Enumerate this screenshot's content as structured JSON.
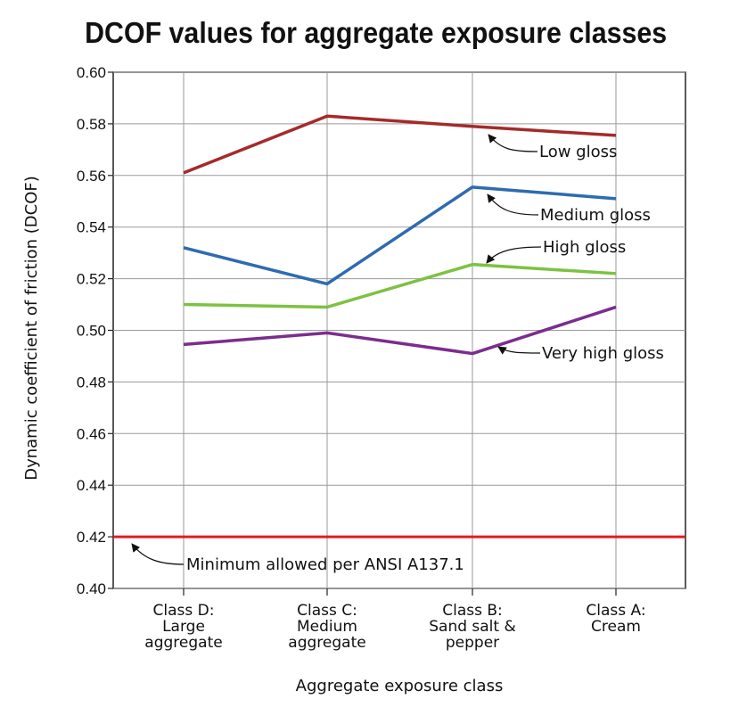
{
  "chart_data": {
    "type": "line",
    "title": "DCOF values for aggregate exposure classes",
    "xlabel": "Aggregate exposure class",
    "ylabel": "Dynamic coefficient of friction (DCOF)",
    "ylim": [
      0.4,
      0.6
    ],
    "yticks": [
      "0.40",
      "0.42",
      "0.44",
      "0.46",
      "0.48",
      "0.50",
      "0.52",
      "0.54",
      "0.56",
      "0.58",
      "0.60"
    ],
    "categories": [
      [
        "Class D:",
        "Large",
        "aggregate"
      ],
      [
        "Class C:",
        "Medium",
        "aggregate"
      ],
      [
        "Class B:",
        "Sand salt &",
        "pepper"
      ],
      [
        "Class A:",
        "Cream"
      ]
    ],
    "series": [
      {
        "name": "Low gloss",
        "color": "#a52a2a",
        "values": [
          0.561,
          0.583,
          0.579,
          0.5755
        ]
      },
      {
        "name": "Medium gloss",
        "color": "#2e6bb0",
        "values": [
          0.532,
          0.518,
          0.5555,
          0.551
        ]
      },
      {
        "name": "High gloss",
        "color": "#7dc242",
        "values": [
          0.51,
          0.509,
          0.5255,
          0.522
        ]
      },
      {
        "name": "Very high gloss",
        "color": "#7b2d8e",
        "values": [
          0.4945,
          0.499,
          0.491,
          0.509
        ]
      }
    ],
    "reference_line": {
      "label": "Minimum allowed per ANSI A137.1",
      "value": 0.42,
      "color": "#e31b23"
    },
    "grid": true
  }
}
